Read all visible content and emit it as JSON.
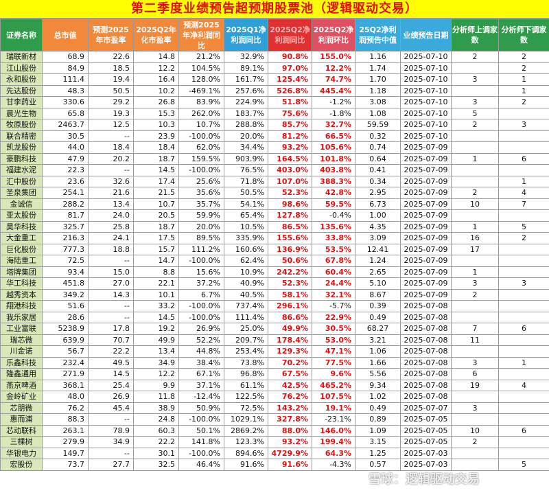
{
  "title": "第二季度业绩预告超预期股票池（逻辑驱动交易）",
  "watermark": "雪球：逻辑驱动交易",
  "headers": [
    "证券名称",
    "总市值",
    "预测2025年市盈率",
    "2025Q2年化市盈率",
    "预测2025年净利润同比",
    "2025Q1净利润同比",
    "2025Q2净利润同比",
    "2025Q2净利润环比",
    "25Q2净利润预告中值",
    "业绩预告日期",
    "分析师上调家数",
    "分析师下调家数"
  ],
  "rows": [
    [
      "瑞联新材",
      "68.9",
      "22.6",
      "14.8",
      "21.2%",
      "32.9%",
      "90.8%",
      "155.0%",
      "1.16",
      "2025-07-10",
      "2",
      "2"
    ],
    [
      "江山股份",
      "84.9",
      "18.5",
      "12.2",
      "104.5%",
      "89.1%",
      "97.0%",
      "12.2%",
      "1.74",
      "2025-07-10",
      "",
      "2"
    ],
    [
      "永和股份",
      "111.4",
      "19.4",
      "16.4",
      "128.0%",
      "161.7%",
      "125.4%",
      "74.7%",
      "1.70",
      "2025-07-10",
      "3",
      "1"
    ],
    [
      "先达股份",
      "48.3",
      "50.5",
      "10.2",
      "-469.1%",
      "257.6%",
      "526.8%",
      "445.4%",
      "1.18",
      "2025-07-10",
      "",
      "1"
    ],
    [
      "甘李药业",
      "330.6",
      "29.2",
      "26.8",
      "83.9%",
      "224.9%",
      "51.8%",
      "-1.2%",
      "3.08",
      "2025-07-10",
      "3",
      "2"
    ],
    [
      "晨光生物",
      "65.8",
      "19.3",
      "15.3",
      "262.0%",
      "183.7%",
      "75.6%",
      "-1.8%",
      "1.08",
      "2025-07-10",
      "5",
      ""
    ],
    [
      "牧原股份",
      "2463.7",
      "12.5",
      "10.3",
      "10.7%",
      "288.8%",
      "85.7%",
      "32.7%",
      "59.59",
      "2025-07-10",
      "2",
      "3"
    ],
    [
      "联合精密",
      "30.5",
      "--",
      "23.9",
      "-100.0%",
      "20.0%",
      "81.2%",
      "66.5%",
      "0.32",
      "2025-07-10",
      "",
      ""
    ],
    [
      "凯龙股份",
      "44.0",
      "18.4",
      "18.4",
      "62.0%",
      "34.4%",
      "93.2%",
      "105.6%",
      "0.74",
      "2025-07-09",
      "",
      ""
    ],
    [
      "豪鹏科技",
      "47.9",
      "20.2",
      "18.7",
      "159.5%",
      "903.9%",
      "164.5%",
      "101.8%",
      "0.64",
      "2025-07-09",
      "1",
      "6"
    ],
    [
      "福建水泥",
      "22.3",
      "--",
      "14.5",
      "-100.0%",
      "76.5%",
      "403.0%",
      "403.8%",
      "0.41",
      "2025-07-09",
      "",
      ""
    ],
    [
      "汇中股份",
      "23.6",
      "32.6",
      "17.4",
      "25.6%",
      "71.8%",
      "107.0%",
      "388.3%",
      "0.34",
      "2025-07-09",
      "",
      "1"
    ],
    [
      "圣泉集团",
      "254.1",
      "21.6",
      "21.5",
      "35.6%",
      "50.5%",
      "52.3%",
      "42.8%",
      "2.95",
      "2025-07-09",
      "2",
      "4"
    ],
    [
      "金诚信",
      "288.2",
      "13.4",
      "10.7",
      "35.7%",
      "54.1%",
      "98.6%",
      "59.5%",
      "6.73",
      "2025-07-09",
      "10",
      "7"
    ],
    [
      "亚太股份",
      "81.7",
      "24.0",
      "20.5",
      "59.9%",
      "65.4%",
      "127.8%",
      "-0.4%",
      "1.00",
      "2025-07-09",
      "",
      ""
    ],
    [
      "昊华科技",
      "325.7",
      "25.8",
      "18.7",
      "20.0%",
      "10.5%",
      "86.5%",
      "135.6%",
      "4.35",
      "2025-07-09",
      "1",
      "5"
    ],
    [
      "大金重工",
      "216.3",
      "24.1",
      "17.5",
      "89.5%",
      "335.9%",
      "155.6%",
      "33.8%",
      "3.09",
      "2025-07-09",
      "16",
      "2"
    ],
    [
      "巨化股份",
      "777.3",
      "18.8",
      "15.7",
      "111.2%",
      "160.6%",
      "136.9%",
      "53.5%",
      "12.41",
      "2025-07-09",
      "17",
      ""
    ],
    [
      "海陆重工",
      "72.5",
      "--",
      "14.7",
      "-100.0%",
      "62.4%",
      "50.6%",
      "67.8%",
      "1.24",
      "2025-07-09",
      "",
      ""
    ],
    [
      "塔牌集团",
      "93.4",
      "15.0",
      "8.8",
      "15.6%",
      "10.9%",
      "242.2%",
      "60.4%",
      "2.65",
      "2025-07-09",
      "1",
      ""
    ],
    [
      "华工科技",
      "451.8",
      "27.0",
      "22.1",
      "37.2%",
      "40.9%",
      "52.3%",
      "24.4%",
      "5.10",
      "2025-07-09",
      "3",
      "3"
    ],
    [
      "越秀资本",
      "349.2",
      "14.3",
      "10.1",
      "6.7%",
      "40.5%",
      "58.1%",
      "32.1%",
      "8.67",
      "2025-07-09",
      "2",
      ""
    ],
    [
      "翔港科技",
      "51.6",
      "--",
      "33.2",
      "-100.0%",
      "737.4%",
      "296.1%",
      "-5.7%",
      "0.39",
      "2025-07-08",
      "",
      ""
    ],
    [
      "我乐家居",
      "28.6",
      "--",
      "14.5",
      "-100.0%",
      "111.4%",
      "86.6%",
      "22.9%",
      "0.49",
      "2025-07-08",
      "",
      ""
    ],
    [
      "工业富联",
      "5238.9",
      "17.8",
      "19.2",
      "26.9%",
      "25.0%",
      "49.9%",
      "30.5%",
      "68.27",
      "2025-07-08",
      "7",
      "6"
    ],
    [
      "瑞芯微",
      "639.9",
      "70.7",
      "49.9",
      "52.2%",
      "209.7%",
      "178.4%",
      "53.0%",
      "3.21",
      "2025-07-08",
      "11",
      ""
    ],
    [
      "川金诺",
      "56.7",
      "22.2",
      "13.4",
      "44.8%",
      "253.4%",
      "129.3%",
      "47.1%",
      "1.06",
      "2025-07-08",
      "",
      ""
    ],
    [
      "乐鑫科技",
      "232.4",
      "49.5",
      "34.9",
      "38.4%",
      "73.8%",
      "70.2%",
      "77.5%",
      "1.66",
      "2025-07-08",
      "3",
      "1"
    ],
    [
      "隆鑫通用",
      "271.9",
      "14.5",
      "12.2",
      "67.1%",
      "96.8%",
      "67.5%",
      "9.6%",
      "5.56",
      "2025-07-08",
      "6",
      ""
    ],
    [
      "燕京啤酒",
      "368.1",
      "25.4",
      "9.9",
      "37.1%",
      "61.1%",
      "42.5%",
      "465.2%",
      "9.34",
      "2025-07-08",
      "19",
      "4"
    ],
    [
      "金岭矿业",
      "48.0",
      "26.9",
      "11.8",
      "-12.4%",
      "122.5%",
      "76.2%",
      "107.5%",
      "1.02",
      "2025-07-08",
      "",
      ""
    ],
    [
      "芯朋微",
      "76.2",
      "45.4",
      "38.9",
      "50.9%",
      "72.5%",
      "143.2%",
      "19.1%",
      "0.49",
      "2025-07-07",
      "3",
      ""
    ],
    [
      "惠而浦",
      "88.3",
      "--",
      "24.8",
      "-100.0%",
      "1029.1%",
      "327.8%",
      "-23.1%",
      "0.89",
      "2025-07-05",
      "",
      ""
    ],
    [
      "芯动联科",
      "263.1",
      "78.9",
      "60.3",
      "50.1%",
      "2869.2%",
      "88.0%",
      "146.0%",
      "1.09",
      "2025-07-05",
      "10",
      "6"
    ],
    [
      "三棵树",
      "279.9",
      "34.9",
      "22.2",
      "141.8%",
      "123.3%",
      "93.2%",
      "199.4%",
      "3.15",
      "2025-07-05",
      "2",
      ""
    ],
    [
      "华银电力",
      "149.7",
      "--",
      "30.1",
      "-100.0%",
      "894.6%",
      "4729.9%",
      "64.3%",
      "1.25",
      "2025-07-03",
      "",
      ""
    ],
    [
      "宏股份",
      "73.7",
      "27.7",
      "32.5",
      "46.4%",
      "91.6%",
      "91.6%",
      "-4.3%",
      "0.57",
      "2025-07-03",
      "",
      "5"
    ]
  ]
}
